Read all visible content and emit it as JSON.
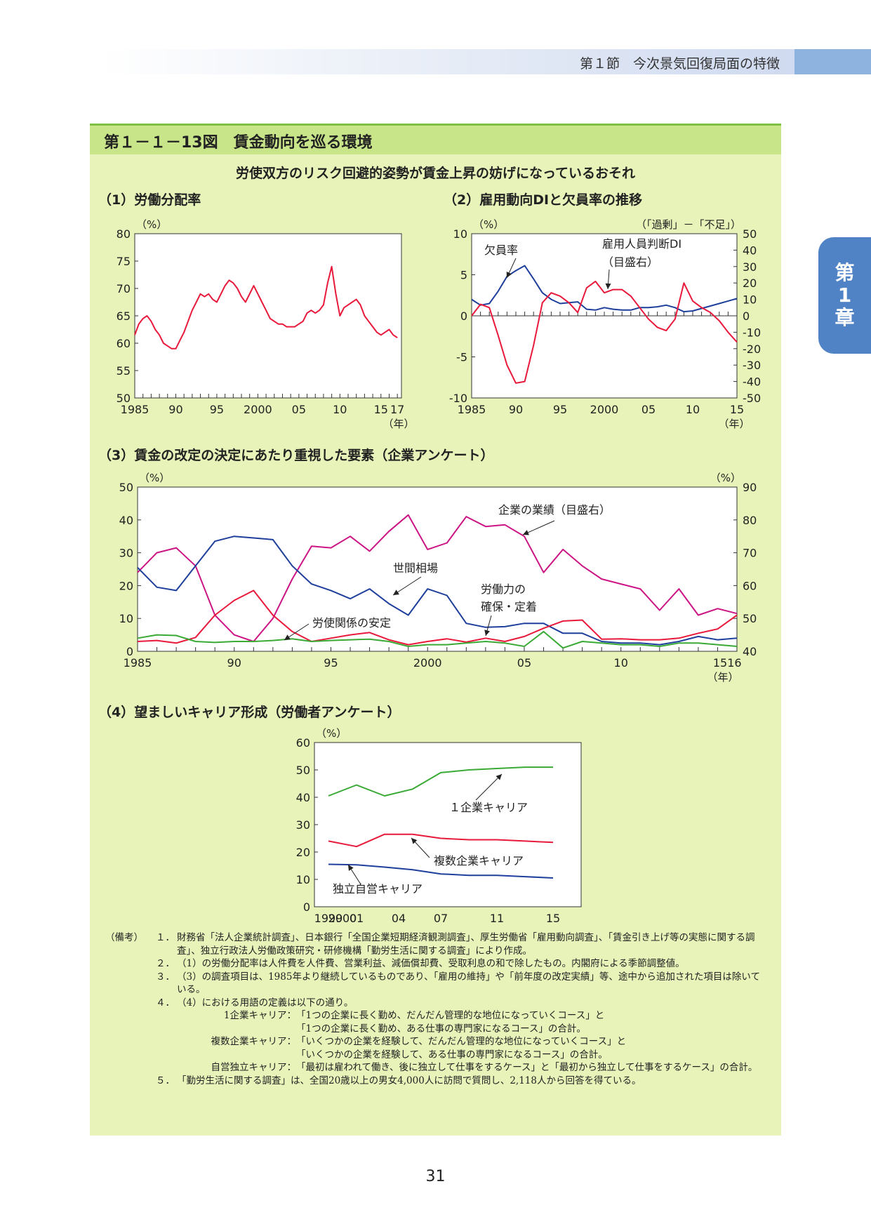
{
  "header": {
    "section": "第１節　今次景気回復局面の特徴"
  },
  "side_tab": {
    "line1": "第",
    "line2": "1",
    "line3": "章"
  },
  "figure": {
    "title": "第１－１－13図　賃金動向を巡る環境",
    "subtitle": "労使双方のリスク回避的姿勢が賃金上昇の妨げになっているおそれ"
  },
  "colors": {
    "red": "#e8193b",
    "blue": "#1f3f9c",
    "green": "#3aaa35",
    "magenta": "#cc1584",
    "panel": "#e7f3b9"
  },
  "chart_data": [
    {
      "id": "c1",
      "type": "line",
      "title": "（1）労働分配率",
      "ylabel": "（%）",
      "xunit": "（年）",
      "ylim": [
        50,
        80
      ],
      "yticks": [
        50,
        55,
        60,
        65,
        70,
        75,
        80
      ],
      "xlim": [
        1985,
        2017.5
      ],
      "xticks": [
        {
          "v": 1985,
          "label": "1985"
        },
        {
          "v": 1990,
          "label": "90"
        },
        {
          "v": 1995,
          "label": "95"
        },
        {
          "v": 2000,
          "label": "2000"
        },
        {
          "v": 2005,
          "label": "05"
        },
        {
          "v": 2010,
          "label": "10"
        },
        {
          "v": 2015,
          "label": "15"
        },
        {
          "v": 2017,
          "label": "17"
        }
      ],
      "series": [
        {
          "color": "#e8193b",
          "x": [
            1985,
            1985.5,
            1986,
            1986.5,
            1987,
            1987.5,
            1988,
            1988.5,
            1989,
            1989.5,
            1990,
            1990.5,
            1991,
            1991.5,
            1992,
            1992.5,
            1993,
            1993.5,
            1994,
            1994.5,
            1995,
            1995.5,
            1996,
            1996.5,
            1997,
            1997.5,
            1998,
            1998.5,
            1999,
            1999.5,
            2000,
            2000.5,
            2001,
            2001.5,
            2002,
            2002.5,
            2003,
            2003.5,
            2004,
            2004.5,
            2005,
            2005.5,
            2006,
            2006.5,
            2007,
            2007.5,
            2008,
            2008.5,
            2009,
            2009.5,
            2010,
            2010.5,
            2011,
            2011.5,
            2012,
            2012.5,
            2013,
            2013.5,
            2014,
            2014.5,
            2015,
            2015.5,
            2016,
            2016.5,
            2017
          ],
          "values": [
            61.5,
            63.5,
            64.5,
            65,
            64,
            62.5,
            61.5,
            60,
            59.5,
            59,
            59,
            60.5,
            62,
            64,
            66,
            67.5,
            69,
            68.5,
            69,
            68,
            67.5,
            69,
            70.5,
            71.5,
            71,
            70,
            68.5,
            67.5,
            69,
            70.5,
            69,
            67.5,
            66,
            64.5,
            64,
            63.5,
            63.5,
            63,
            63,
            63,
            63.5,
            64,
            65.5,
            66,
            65.5,
            66,
            67,
            71,
            74,
            69,
            65,
            66.5,
            67,
            67.5,
            68,
            67,
            65,
            64,
            63,
            62,
            61.5,
            62,
            62.5,
            61.5,
            61
          ]
        }
      ]
    },
    {
      "id": "c2",
      "type": "line",
      "title": "（2）雇用動向DIと欠員率の推移",
      "ylabel_left": "（%）",
      "ylabel_right": "（「過剰」－「不足」）",
      "xunit": "（年）",
      "ylim": [
        -10,
        10
      ],
      "yticks": [
        -10,
        -5,
        0,
        5,
        10
      ],
      "y2lim": [
        -50,
        50
      ],
      "y2ticks": [
        -50,
        -40,
        -30,
        -20,
        -10,
        0,
        10,
        20,
        30,
        40,
        50
      ],
      "xlim": [
        1985,
        2015
      ],
      "xticks": [
        {
          "v": 1985,
          "label": "1985"
        },
        {
          "v": 1990,
          "label": "90"
        },
        {
          "v": 1995,
          "label": "95"
        },
        {
          "v": 2000,
          "label": "2000"
        },
        {
          "v": 2005,
          "label": "05"
        },
        {
          "v": 2010,
          "label": "10"
        },
        {
          "v": 2015,
          "label": "15"
        }
      ],
      "series": [
        {
          "name": "欠員率",
          "color": "#1f3f9c",
          "axis": "left",
          "x": [
            1985,
            1986,
            1987,
            1988,
            1989,
            1990,
            1991,
            1992,
            1993,
            1994,
            1995,
            1996,
            1997,
            1998,
            1999,
            2000,
            2001,
            2002,
            2003,
            2004,
            2005,
            2006,
            2007,
            2008,
            2009,
            2010,
            2011,
            2012,
            2013,
            2014,
            2015
          ],
          "values": [
            2,
            1.3,
            1.5,
            3,
            4.8,
            5.5,
            6.1,
            4.5,
            2.8,
            2,
            1.5,
            1.6,
            1.7,
            0.8,
            0.7,
            1,
            0.8,
            0.7,
            0.7,
            1,
            1,
            1.1,
            1.3,
            1,
            0.5,
            0.6,
            0.9,
            1.2,
            1.5,
            1.8,
            2.1
          ]
        },
        {
          "name": "雇用人員判断DI（目盛右）",
          "color": "#e8193b",
          "axis": "right",
          "x": [
            1985,
            1986,
            1987,
            1988,
            1989,
            1990,
            1991,
            1992,
            1993,
            1994,
            1995,
            1996,
            1997,
            1998,
            1999,
            2000,
            2001,
            2002,
            2003,
            2004,
            2005,
            2006,
            2007,
            2008,
            2009,
            2010,
            2011,
            2012,
            2013,
            2014,
            2015
          ],
          "values": [
            0,
            7,
            5,
            -12,
            -30,
            -41,
            -40,
            -18,
            8,
            14,
            12,
            8,
            2,
            17,
            21,
            14,
            16,
            16,
            12,
            5,
            -2,
            -7,
            -9,
            -2,
            20,
            9,
            5,
            2,
            -3,
            -10,
            -16
          ]
        }
      ],
      "annotations": [
        "欠員率",
        "雇用人員判断DI",
        "（目盛右）"
      ]
    },
    {
      "id": "c3",
      "type": "line",
      "title": "（3）賃金の改定の決定にあたり重視した要素（企業アンケート）",
      "ylabel_left": "（%）",
      "ylabel_right": "（%）",
      "xunit": "（年）",
      "ylim": [
        0,
        50
      ],
      "yticks": [
        0,
        10,
        20,
        30,
        40,
        50
      ],
      "y2lim": [
        40,
        90
      ],
      "y2ticks": [
        40,
        50,
        60,
        70,
        80,
        90
      ],
      "xlim": [
        1985,
        2016
      ],
      "xticks": [
        {
          "v": 1985,
          "label": "1985"
        },
        {
          "v": 1990,
          "label": "90"
        },
        {
          "v": 1995,
          "label": "95"
        },
        {
          "v": 2000,
          "label": "2000"
        },
        {
          "v": 2005,
          "label": "05"
        },
        {
          "v": 2010,
          "label": "10"
        },
        {
          "v": 2015.5,
          "label": "1516"
        }
      ],
      "series": [
        {
          "name": "企業の業績（目盛右）",
          "color": "#cc1584",
          "axis": "right",
          "x": [
            1985,
            1986,
            1987,
            1988,
            1989,
            1990,
            1991,
            1992,
            1993,
            1994,
            1995,
            1996,
            1997,
            1998,
            1999,
            2000,
            2001,
            2002,
            2003,
            2004,
            2005,
            2006,
            2007,
            2008,
            2009,
            2010,
            2011,
            2012,
            2013,
            2014,
            2015,
            2016
          ],
          "values": [
            64,
            70,
            71.5,
            66,
            51,
            45,
            43,
            50,
            62,
            72,
            71.5,
            75,
            70.5,
            76.5,
            81.5,
            71,
            73,
            81,
            78,
            78.5,
            75,
            64,
            71,
            66,
            62,
            60.5,
            59,
            52.5,
            59,
            51,
            53,
            51.5
          ]
        },
        {
          "name": "世間相場",
          "color": "#1f3f9c",
          "axis": "left",
          "x": [
            1985,
            1986,
            1987,
            1988,
            1989,
            1990,
            1991,
            1992,
            1993,
            1994,
            1995,
            1996,
            1997,
            1998,
            1999,
            2000,
            2001,
            2002,
            2003,
            2004,
            2005,
            2006,
            2007,
            2008,
            2009,
            2010,
            2011,
            2012,
            2013,
            2014,
            2015,
            2016
          ],
          "values": [
            25.5,
            19.5,
            18.5,
            26,
            33.5,
            35,
            34.5,
            34,
            26,
            20.5,
            18.5,
            16,
            19,
            14.5,
            11,
            19,
            17,
            8.5,
            7.3,
            7.5,
            8.5,
            8.5,
            5.5,
            5.5,
            3,
            2.5,
            2.5,
            2,
            3,
            4.5,
            3.5,
            4
          ]
        },
        {
          "name": "労働力の確保・定着",
          "color": "#e8193b",
          "axis": "left",
          "x": [
            1985,
            1986,
            1987,
            1988,
            1989,
            1990,
            1991,
            1992,
            1993,
            1994,
            1995,
            1996,
            1997,
            1998,
            1999,
            2000,
            2001,
            2002,
            2003,
            2004,
            2005,
            2006,
            2007,
            2008,
            2009,
            2010,
            2011,
            2012,
            2013,
            2014,
            2015,
            2016
          ],
          "values": [
            3,
            3.3,
            2.5,
            4.2,
            11,
            15.5,
            18.5,
            11,
            6,
            3,
            4,
            5,
            5.7,
            3.5,
            2,
            3,
            3.8,
            2.8,
            4,
            3,
            4.5,
            7,
            9.2,
            9.5,
            3.7,
            3.8,
            3.5,
            3.5,
            4,
            5.5,
            6.8,
            11
          ]
        },
        {
          "name": "労使関係の安定",
          "color": "#3aaa35",
          "axis": "left",
          "x": [
            1985,
            1986,
            1987,
            1988,
            1989,
            1990,
            1991,
            1992,
            1993,
            1994,
            1995,
            1996,
            1997,
            1998,
            1999,
            2000,
            2001,
            2002,
            2003,
            2004,
            2005,
            2006,
            2007,
            2008,
            2009,
            2010,
            2011,
            2012,
            2013,
            2014,
            2015,
            2016
          ],
          "values": [
            4,
            5,
            4.8,
            3,
            2.7,
            3,
            3,
            3.3,
            3.8,
            3,
            3.3,
            3.5,
            3.7,
            3,
            1.5,
            2,
            2,
            2.5,
            3,
            2.5,
            1.5,
            6,
            1,
            3,
            2.5,
            2,
            2,
            1.5,
            2.5,
            2.5,
            2,
            1.5
          ]
        }
      ],
      "annotations": [
        "企業の業績（目盛右）",
        "世間相場",
        "労働力の",
        "確保・定着",
        "労使関係の安定"
      ]
    },
    {
      "id": "c4",
      "type": "line",
      "title": "（4）望ましいキャリア形成（労働者アンケート）",
      "ylabel": "（%）",
      "xunit": "（年）",
      "ylim": [
        0,
        60
      ],
      "yticks": [
        0,
        10,
        20,
        30,
        40,
        50,
        60
      ],
      "xlim": [
        1998,
        2017
      ],
      "xticks": [
        {
          "v": 1999,
          "label": "1999"
        },
        {
          "v": 2000,
          "label": "2000"
        },
        {
          "v": 2001,
          "label": "01"
        },
        {
          "v": 2004,
          "label": "04"
        },
        {
          "v": 2007,
          "label": "07"
        },
        {
          "v": 2011,
          "label": "11"
        },
        {
          "v": 2015,
          "label": "15"
        }
      ],
      "series": [
        {
          "name": "１企業キャリア",
          "color": "#3aaa35",
          "x": [
            1999,
            2001,
            2003,
            2005,
            2007,
            2009,
            2011,
            2013,
            2015
          ],
          "values": [
            40.5,
            44.5,
            40.5,
            43,
            49,
            50,
            50.5,
            51,
            51
          ]
        },
        {
          "name": "複数企業キャリア",
          "color": "#e8193b",
          "x": [
            1999,
            2001,
            2003,
            2005,
            2007,
            2009,
            2011,
            2013,
            2015
          ],
          "values": [
            24,
            22,
            26.5,
            26.5,
            25,
            24.5,
            24.5,
            24,
            23.5
          ]
        },
        {
          "name": "独立自営キャリア",
          "color": "#1f3f9c",
          "x": [
            1999,
            2001,
            2003,
            2005,
            2007,
            2009,
            2011,
            2013,
            2015
          ],
          "values": [
            15.5,
            15.3,
            14.5,
            13.5,
            12,
            11.5,
            11.5,
            11,
            10.5
          ]
        }
      ],
      "annotations": [
        "１企業キャリア",
        "複数企業キャリア",
        "独立自営キャリア"
      ]
    }
  ],
  "notes": {
    "label": "（備考）",
    "n1": "１．",
    "t1": "財務省「法人企業統計調査」、日本銀行「全国企業短期経済観測調査」、厚生労働省「雇用動向調査」、「賃金引き上げ等の実態に関する調査」、独立行政法人労働政策研究・研修機構「勤労生活に関する調査」により作成。",
    "n2": "２．",
    "t2": "（1）の労働分配率は人件費を人件費、営業利益、減価償却費、受取利息の和で除したもの。内閣府による季節調整値。",
    "n3": "３．",
    "t3": "（3）の調査項目は、1985年より継続しているものであり、「雇用の維持」や「前年度の改定実績」等、途中から追加された項目は除いている。",
    "n4": "４．",
    "t4": "（4）における用語の定義は以下の通り。",
    "term1_name": "1企業キャリア：",
    "term1_a": "「1つの企業に長く勤め、だんだん管理的な地位になっていくコース」と",
    "term1_b": "「1つの企業に長く勤め、ある仕事の専門家になるコース」の合計。",
    "term2_name": "複数企業キャリア：",
    "term2_a": "「いくつかの企業を経験して、だんだん管理的な地位になっていくコース」と",
    "term2_b": "「いくつかの企業を経験して、ある仕事の専門家になるコース」の合計。",
    "term3_name": "自営独立キャリア：",
    "term3_a": "「最初は雇われて働き、後に独立して仕事をするケース」と「最初から独立して仕事をするケース」の合計。",
    "n5": "５．",
    "t5": "「勤労生活に関する調査」は、全国20歳以上の男女4,000人に訪問で質問し、2,118人から回答を得ている。"
  },
  "page_number": "31"
}
